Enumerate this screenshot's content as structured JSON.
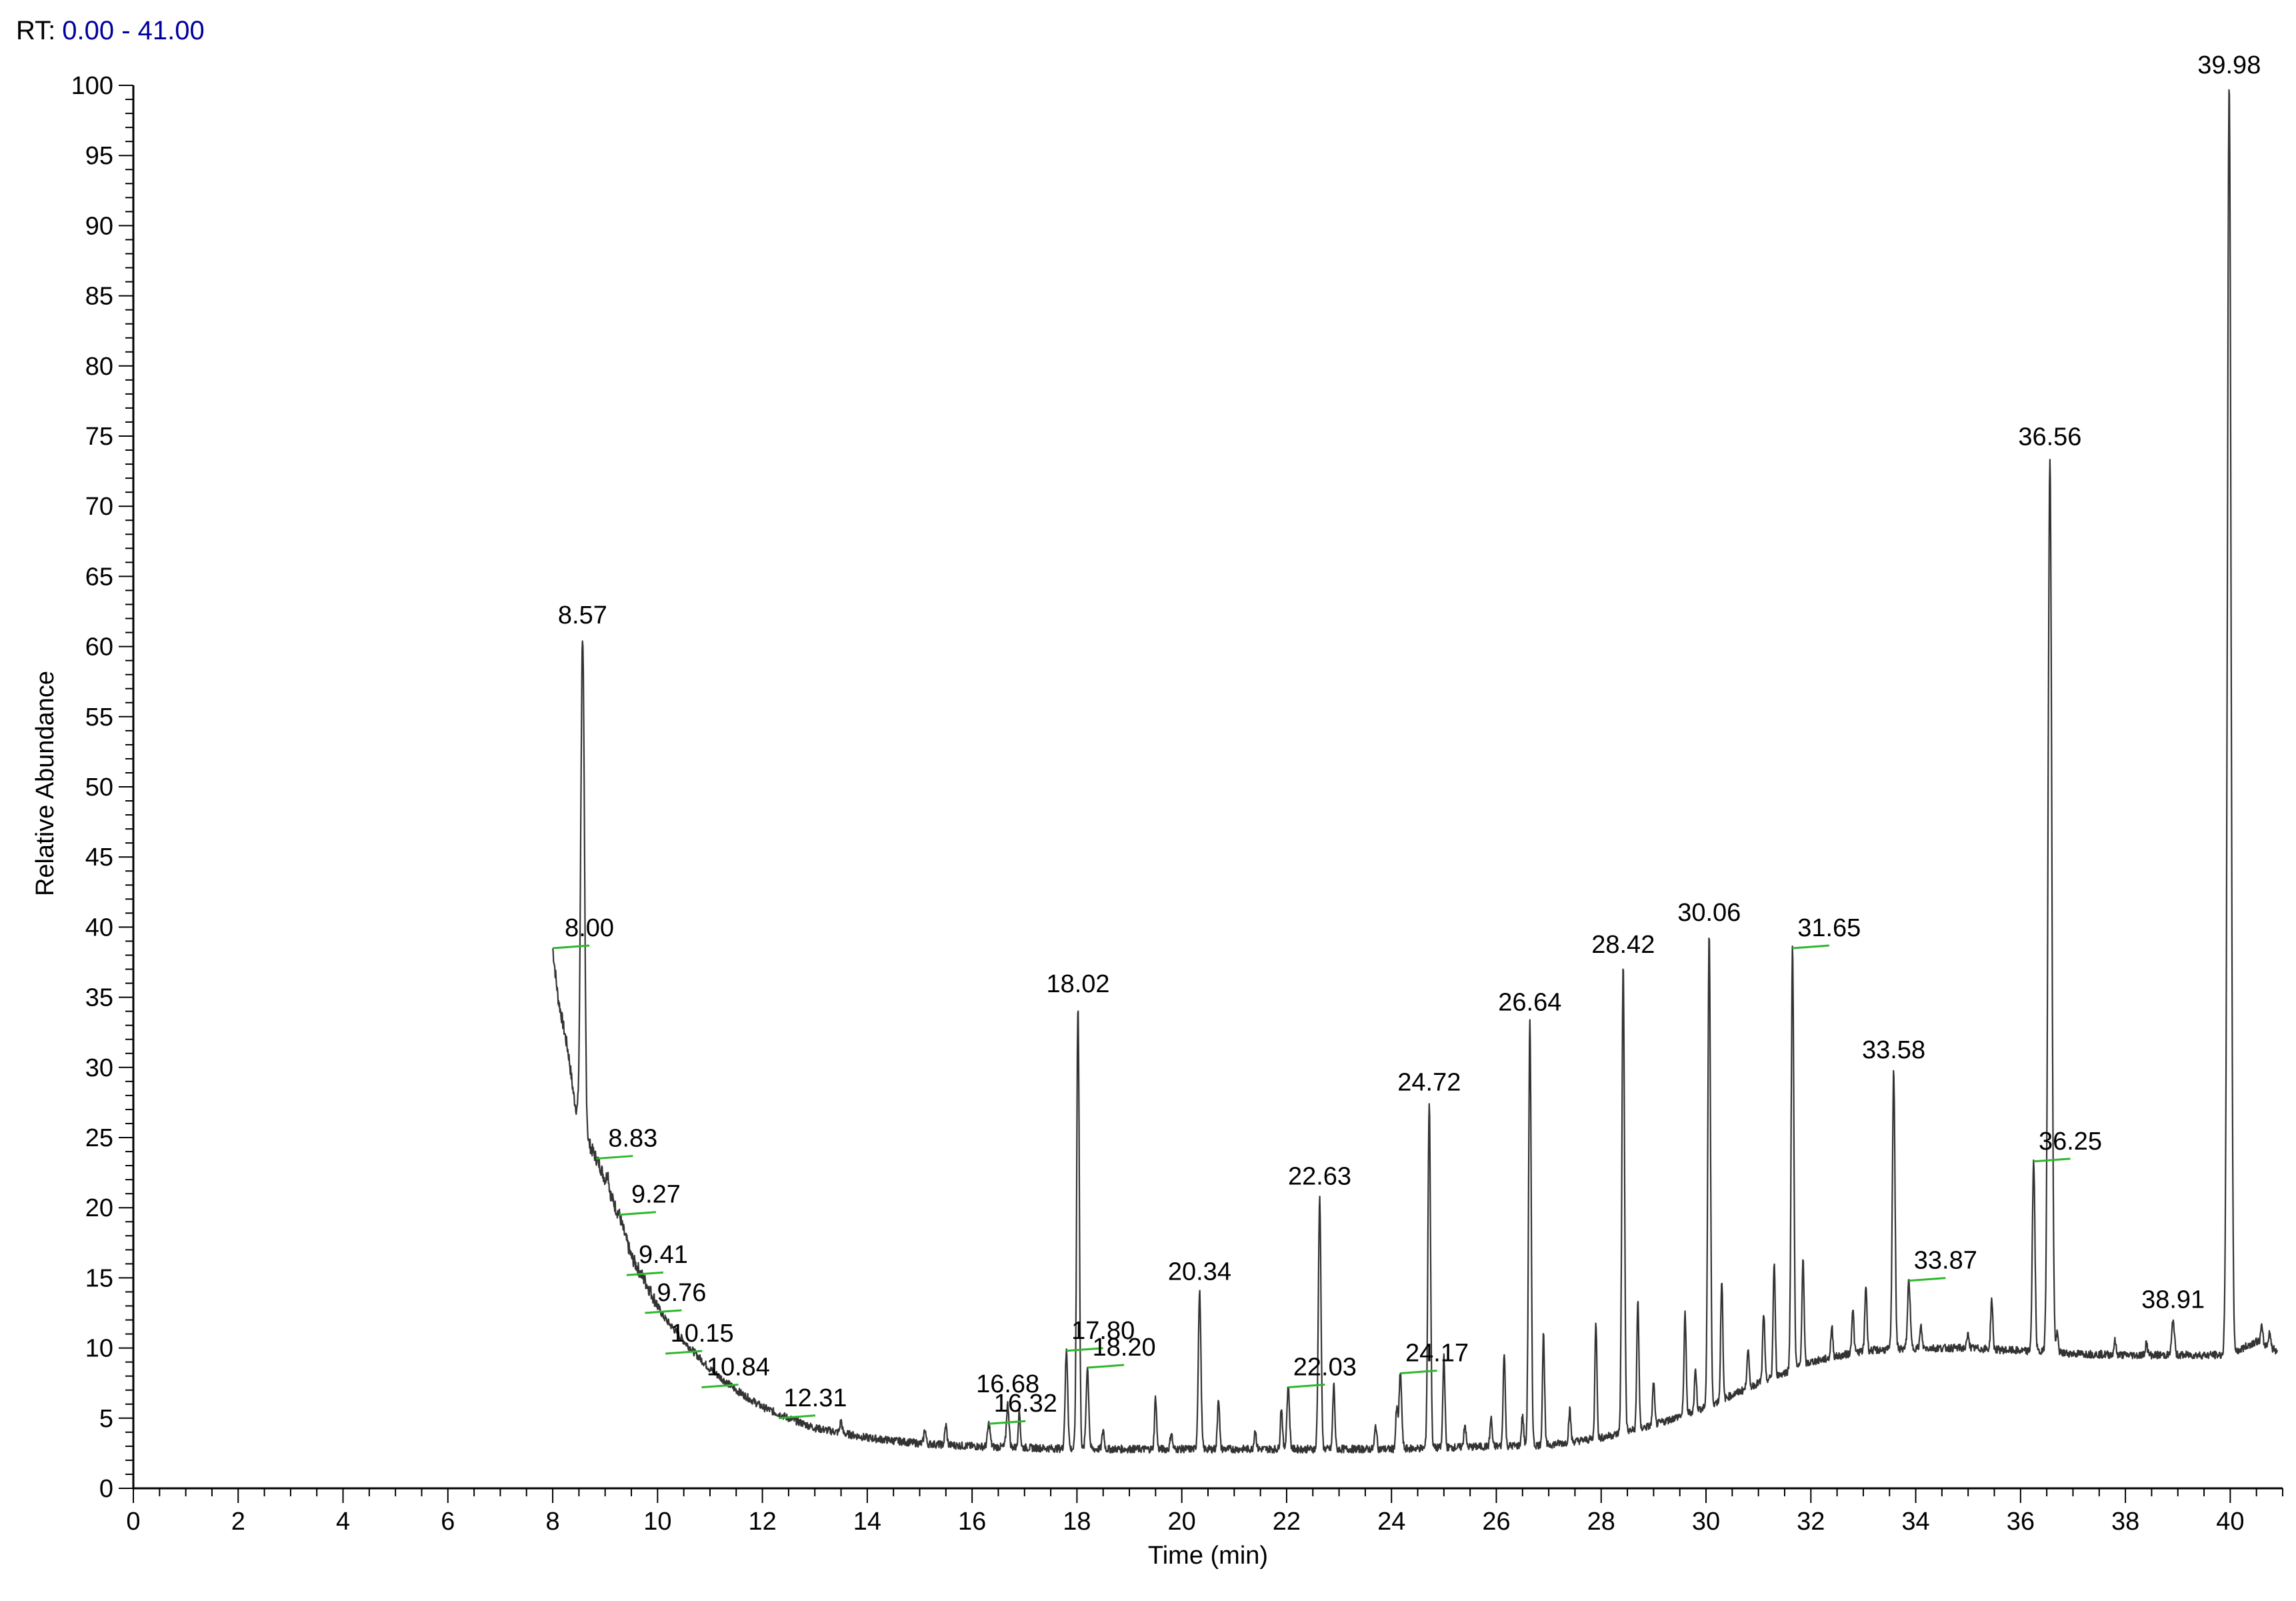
{
  "header": {
    "rt_prefix": "RT:",
    "rt_range": "0.00 - 41.00"
  },
  "chart_data": {
    "type": "line",
    "xlabel": "Time (min)",
    "ylabel": "Relative Abundance",
    "xlim": [
      0,
      41
    ],
    "ylim": [
      0,
      100
    ],
    "x_ticks": [
      0,
      2,
      4,
      6,
      8,
      10,
      12,
      14,
      16,
      18,
      20,
      22,
      24,
      26,
      28,
      30,
      32,
      34,
      36,
      38,
      40
    ],
    "y_ticks": [
      0,
      5,
      10,
      15,
      20,
      25,
      30,
      35,
      40,
      45,
      50,
      55,
      60,
      65,
      70,
      75,
      80,
      85,
      90,
      95,
      100
    ],
    "line_color": "#333333",
    "marker_color": "#2db82d",
    "baseline": [
      [
        8.0,
        38.5
      ],
      [
        8.1,
        35
      ],
      [
        8.2,
        33
      ],
      [
        8.3,
        31
      ],
      [
        8.4,
        28
      ],
      [
        8.5,
        26
      ],
      [
        8.7,
        24.5
      ],
      [
        8.9,
        23
      ],
      [
        9.1,
        21
      ],
      [
        9.3,
        19
      ],
      [
        9.5,
        16.5
      ],
      [
        9.8,
        14.5
      ],
      [
        10.1,
        12.3
      ],
      [
        10.5,
        10.5
      ],
      [
        11.0,
        8.5
      ],
      [
        11.5,
        7.0
      ],
      [
        12.0,
        5.8
      ],
      [
        12.5,
        5.0
      ],
      [
        13.0,
        4.3
      ],
      [
        14.0,
        3.6
      ],
      [
        15.0,
        3.2
      ],
      [
        16.0,
        3.0
      ],
      [
        17.0,
        2.9
      ],
      [
        18.0,
        2.8
      ],
      [
        19.0,
        2.8
      ],
      [
        20.0,
        2.8
      ],
      [
        21.0,
        2.8
      ],
      [
        22.0,
        2.8
      ],
      [
        23.0,
        2.8
      ],
      [
        24.0,
        2.8
      ],
      [
        25.0,
        2.9
      ],
      [
        26.0,
        3.0
      ],
      [
        27.0,
        3.1
      ],
      [
        28.0,
        3.6
      ],
      [
        29.0,
        4.5
      ],
      [
        30.0,
        5.8
      ],
      [
        31.0,
        7.5
      ],
      [
        32.0,
        9.0
      ],
      [
        33.0,
        9.8
      ],
      [
        34.0,
        10.0
      ],
      [
        35.0,
        10.0
      ],
      [
        36.0,
        9.8
      ],
      [
        37.0,
        9.6
      ],
      [
        38.0,
        9.5
      ],
      [
        39.0,
        9.5
      ],
      [
        40.0,
        9.5
      ],
      [
        40.5,
        10.5
      ],
      [
        40.9,
        9.8
      ]
    ],
    "peaks": [
      {
        "rt": 8.0,
        "label": "8.00",
        "height": 38.5,
        "marker": true
      },
      {
        "rt": 8.57,
        "label": "8.57",
        "height": 60.8,
        "marker": false
      },
      {
        "rt": 8.83,
        "label": "8.83",
        "height": 23.5,
        "marker": true
      },
      {
        "rt": 9.27,
        "label": "9.27",
        "height": 19.5,
        "marker": true
      },
      {
        "rt": 9.41,
        "label": "9.41",
        "height": 15.2,
        "marker": true
      },
      {
        "rt": 9.76,
        "label": "9.76",
        "height": 12.5,
        "marker": true
      },
      {
        "rt": 10.15,
        "label": "10.15",
        "height": 9.6,
        "marker": true
      },
      {
        "rt": 10.84,
        "label": "10.84",
        "height": 7.2,
        "marker": true
      },
      {
        "rt": 12.31,
        "label": "12.31",
        "height": 5.0,
        "marker": true
      },
      {
        "rt": 16.32,
        "label": "16.32",
        "height": 4.6,
        "marker": true
      },
      {
        "rt": 16.68,
        "label": "16.68",
        "height": 6.0,
        "marker": false
      },
      {
        "rt": 17.8,
        "label": "17.80",
        "height": 9.8,
        "marker": true
      },
      {
        "rt": 18.02,
        "label": "18.02",
        "height": 34.5,
        "marker": false
      },
      {
        "rt": 18.2,
        "label": "18.20",
        "height": 8.6,
        "marker": true
      },
      {
        "rt": 20.34,
        "label": "20.34",
        "height": 14.0,
        "marker": false
      },
      {
        "rt": 22.03,
        "label": "22.03",
        "height": 7.2,
        "marker": true
      },
      {
        "rt": 22.63,
        "label": "22.63",
        "height": 20.8,
        "marker": false
      },
      {
        "rt": 24.17,
        "label": "24.17",
        "height": 8.2,
        "marker": true
      },
      {
        "rt": 24.72,
        "label": "24.72",
        "height": 27.5,
        "marker": false
      },
      {
        "rt": 26.64,
        "label": "26.64",
        "height": 33.2,
        "marker": false
      },
      {
        "rt": 28.42,
        "label": "28.42",
        "height": 37.3,
        "marker": false
      },
      {
        "rt": 30.06,
        "label": "30.06",
        "height": 39.6,
        "marker": false
      },
      {
        "rt": 31.65,
        "label": "31.65",
        "height": 38.5,
        "marker": true
      },
      {
        "rt": 33.58,
        "label": "33.58",
        "height": 29.8,
        "marker": false
      },
      {
        "rt": 33.87,
        "label": "33.87",
        "height": 14.8,
        "marker": true
      },
      {
        "rt": 36.25,
        "label": "36.25",
        "height": 23.3,
        "marker": true
      },
      {
        "rt": 36.56,
        "label": "36.56",
        "height": 73.5,
        "marker": false
      },
      {
        "rt": 38.91,
        "label": "38.91",
        "height": 12.0,
        "marker": false
      },
      {
        "rt": 39.98,
        "label": "39.98",
        "height": 100,
        "marker": false
      }
    ],
    "minor_peaks": [
      {
        "rt": 8.65,
        "height": 24.5
      },
      {
        "rt": 9.05,
        "height": 22.5
      },
      {
        "rt": 13.5,
        "height": 4.8
      },
      {
        "rt": 15.1,
        "height": 4.2
      },
      {
        "rt": 15.5,
        "height": 4.5
      },
      {
        "rt": 16.9,
        "height": 5.5
      },
      {
        "rt": 18.5,
        "height": 4.2
      },
      {
        "rt": 19.5,
        "height": 6.5
      },
      {
        "rt": 19.8,
        "height": 4.0
      },
      {
        "rt": 20.7,
        "height": 6.5
      },
      {
        "rt": 21.4,
        "height": 4.2
      },
      {
        "rt": 21.9,
        "height": 5.8
      },
      {
        "rt": 22.9,
        "height": 7.4
      },
      {
        "rt": 23.7,
        "height": 4.5
      },
      {
        "rt": 24.1,
        "height": 5.6
      },
      {
        "rt": 25.0,
        "height": 9.5
      },
      {
        "rt": 25.4,
        "height": 4.6
      },
      {
        "rt": 25.9,
        "height": 5.0
      },
      {
        "rt": 26.15,
        "height": 9.8
      },
      {
        "rt": 26.5,
        "height": 5.2
      },
      {
        "rt": 26.9,
        "height": 11.0
      },
      {
        "rt": 27.4,
        "height": 5.6
      },
      {
        "rt": 27.9,
        "height": 11.8
      },
      {
        "rt": 28.7,
        "height": 13.5
      },
      {
        "rt": 29.0,
        "height": 7.5
      },
      {
        "rt": 29.6,
        "height": 12.5
      },
      {
        "rt": 29.8,
        "height": 8.5
      },
      {
        "rt": 30.3,
        "height": 15.0
      },
      {
        "rt": 30.8,
        "height": 10.0
      },
      {
        "rt": 31.1,
        "height": 12.5
      },
      {
        "rt": 31.3,
        "height": 16.0
      },
      {
        "rt": 31.85,
        "height": 16.5
      },
      {
        "rt": 32.4,
        "height": 11.5
      },
      {
        "rt": 32.8,
        "height": 12.8
      },
      {
        "rt": 33.05,
        "height": 14.5
      },
      {
        "rt": 34.1,
        "height": 11.5
      },
      {
        "rt": 35.0,
        "height": 11.0
      },
      {
        "rt": 35.45,
        "height": 13.5
      },
      {
        "rt": 36.7,
        "height": 11.0
      },
      {
        "rt": 37.8,
        "height": 10.5
      },
      {
        "rt": 38.4,
        "height": 10.4
      },
      {
        "rt": 40.6,
        "height": 11.5
      },
      {
        "rt": 40.75,
        "height": 11.2
      }
    ]
  }
}
